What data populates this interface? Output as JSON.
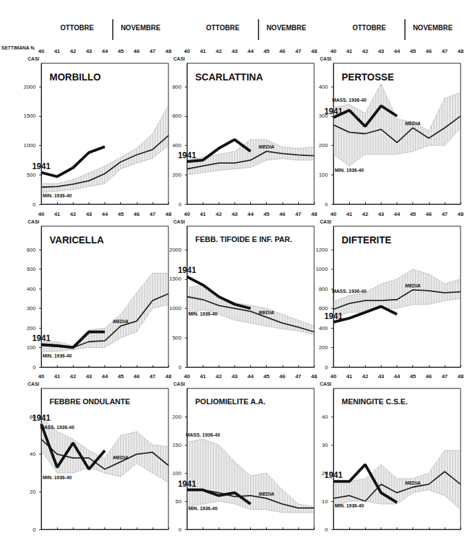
{
  "header": {
    "months": [
      {
        "label": "OTTOBRE",
        "weeks": [
          40,
          44
        ]
      },
      {
        "label": "NOVEMBRE",
        "weeks": [
          45,
          48
        ]
      }
    ],
    "week_label": "SETTIMANA N."
  },
  "chart_data": [
    {
      "type": "line",
      "title": "MORBILLO",
      "ylabel": "CASI",
      "categories": [
        40,
        41,
        42,
        43,
        44,
        45,
        46,
        47,
        48
      ],
      "ylim": [
        0,
        2400
      ],
      "yticks": [
        0,
        500,
        1000,
        1500,
        2000
      ],
      "grid": false,
      "series": [
        {
          "name": "1941",
          "color": "#111111",
          "line_style": "solid",
          "values": [
            540,
            470,
            620,
            880,
            980,
            null,
            null,
            null,
            null
          ]
        },
        {
          "color": "#222222",
          "line_style": "solid",
          "values": [
            290,
            300,
            340,
            400,
            520,
            720,
            840,
            930,
            1170
          ]
        },
        {
          "name": "MIN. 1936-40",
          "type": "band",
          "color": "#8a8a8a",
          "line_style": "dotted",
          "values": [
            200,
            220,
            250,
            300,
            350,
            600,
            700,
            780,
            1000
          ]
        },
        {
          "type": "band",
          "color": "#8a8a8a",
          "line_style": "dotted",
          "values": [
            350,
            350,
            420,
            530,
            650,
            800,
            950,
            1200,
            1680
          ]
        }
      ]
    },
    {
      "type": "line",
      "title": "SCARLATTINA",
      "ylabel": "CASI",
      "categories": [
        40,
        41,
        42,
        43,
        44,
        45,
        46,
        47,
        48
      ],
      "ylim": [
        0,
        960
      ],
      "yticks": [
        0,
        200,
        400,
        600,
        800
      ],
      "grid": false,
      "series": [
        {
          "name": "1941",
          "color": "#111111",
          "line_style": "solid",
          "values": [
            290,
            300,
            380,
            440,
            360,
            null,
            null,
            null,
            null
          ]
        },
        {
          "name": "MEDIA",
          "color": "#222222",
          "line_style": "solid",
          "values": [
            240,
            260,
            280,
            280,
            300,
            360,
            345,
            335,
            330
          ]
        },
        {
          "type": "band",
          "color": "#8a8a8a",
          "line_style": "dotted",
          "values": [
            200,
            215,
            230,
            240,
            250,
            300,
            310,
            300,
            300
          ]
        },
        {
          "type": "band",
          "color": "#8a8a8a",
          "line_style": "dotted",
          "values": [
            300,
            320,
            340,
            360,
            440,
            440,
            390,
            380,
            390
          ]
        }
      ]
    },
    {
      "type": "line",
      "title": "PERTOSSE",
      "ylabel": "CASI",
      "categories": [
        40,
        41,
        42,
        43,
        44,
        45,
        46,
        47,
        48
      ],
      "ylim": [
        0,
        480
      ],
      "yticks": [
        0,
        100,
        200,
        300,
        400
      ],
      "grid": false,
      "series": [
        {
          "name": "1941",
          "color": "#111111",
          "line_style": "solid",
          "values": [
            295,
            320,
            265,
            335,
            300,
            null,
            null,
            null,
            null
          ]
        },
        {
          "name": "MEDIA",
          "color": "#222222",
          "line_style": "solid",
          "values": [
            270,
            245,
            240,
            255,
            210,
            260,
            225,
            260,
            300
          ]
        },
        {
          "name": "MIN. 1936-40",
          "type": "band",
          "color": "#8a8a8a",
          "line_style": "dotted",
          "values": [
            170,
            130,
            170,
            170,
            170,
            180,
            200,
            200,
            260
          ]
        },
        {
          "name": "MASS. 1936-40",
          "type": "band",
          "color": "#8a8a8a",
          "line_style": "dotted",
          "values": [
            330,
            340,
            310,
            410,
            290,
            280,
            250,
            360,
            380
          ]
        }
      ]
    },
    {
      "type": "line",
      "title": "VARICELLA",
      "ylabel": "CASI",
      "categories": [
        40,
        41,
        42,
        43,
        44,
        45,
        46,
        47,
        48
      ],
      "ylim": [
        0,
        720
      ],
      "yticks": [
        0,
        100,
        200,
        300,
        400,
        500,
        600
      ],
      "grid": false,
      "series": [
        {
          "name": "1941",
          "color": "#111111",
          "line_style": "solid",
          "values": [
            115,
            110,
            100,
            180,
            180,
            null,
            null,
            null,
            null
          ]
        },
        {
          "name": "MEDIA",
          "color": "#222222",
          "line_style": "solid",
          "values": [
            110,
            105,
            100,
            130,
            135,
            210,
            235,
            340,
            375
          ]
        },
        {
          "name": "MIN. 1936-40",
          "type": "band",
          "color": "#8a8a8a",
          "line_style": "dotted",
          "values": [
            80,
            80,
            90,
            100,
            100,
            150,
            180,
            300,
            320
          ]
        },
        {
          "type": "band",
          "color": "#8a8a8a",
          "line_style": "dotted",
          "values": [
            130,
            130,
            110,
            190,
            200,
            270,
            380,
            480,
            480
          ]
        }
      ]
    },
    {
      "type": "line",
      "title": "FEBB. TIFOIDE E INF. PAR.",
      "ylabel": "CASI",
      "categories": [
        40,
        41,
        42,
        43,
        44,
        45,
        46,
        47,
        48
      ],
      "ylim": [
        0,
        2400
      ],
      "yticks": [
        0,
        500,
        1000,
        1500,
        2000
      ],
      "grid": false,
      "series": [
        {
          "name": "1941",
          "color": "#111111",
          "line_style": "solid",
          "values": [
            1540,
            1400,
            1200,
            1070,
            1000,
            null,
            null,
            null,
            null
          ]
        },
        {
          "name": "MEDIA",
          "color": "#222222",
          "line_style": "solid",
          "values": [
            1200,
            1150,
            1050,
            1000,
            950,
            850,
            750,
            680,
            600
          ]
        },
        {
          "name": "MIN. 1936-40",
          "type": "band",
          "color": "#8a8a8a",
          "line_style": "dotted",
          "values": [
            900,
            980,
            900,
            800,
            750,
            700,
            650,
            620,
            550
          ]
        },
        {
          "type": "band",
          "color": "#8a8a8a",
          "line_style": "dotted",
          "values": [
            1350,
            1400,
            1200,
            1100,
            1050,
            1000,
            900,
            800,
            700
          ]
        }
      ]
    },
    {
      "type": "line",
      "title": "DIFTERITE",
      "ylabel": "CASI",
      "categories": [
        40,
        41,
        42,
        43,
        44,
        45,
        46,
        47,
        48
      ],
      "ylim": [
        0,
        1440
      ],
      "yticks": [
        0,
        200,
        400,
        600,
        800,
        1000,
        1200
      ],
      "grid": false,
      "series": [
        {
          "name": "1941",
          "color": "#111111",
          "line_style": "solid",
          "values": [
            460,
            500,
            560,
            620,
            540,
            null,
            null,
            null,
            null
          ]
        },
        {
          "name": "MEDIA",
          "color": "#222222",
          "line_style": "solid",
          "values": [
            590,
            650,
            680,
            680,
            690,
            790,
            780,
            760,
            770
          ]
        },
        {
          "type": "band",
          "color": "#8a8a8a",
          "line_style": "dotted",
          "values": [
            500,
            560,
            560,
            600,
            600,
            640,
            640,
            680,
            700
          ]
        },
        {
          "name": "MASS. 1936-40",
          "type": "band",
          "color": "#8a8a8a",
          "line_style": "dotted",
          "values": [
            670,
            730,
            760,
            850,
            900,
            1000,
            950,
            850,
            900
          ]
        }
      ]
    },
    {
      "type": "line",
      "title": "FEBBRE ONDULANTE",
      "ylabel": "CASI",
      "categories": [
        40,
        41,
        42,
        43,
        44,
        45,
        46,
        47,
        48
      ],
      "ylim": [
        0,
        75
      ],
      "yticks": [
        0,
        20,
        40,
        60
      ],
      "grid": false,
      "series": [
        {
          "name": "1941",
          "color": "#111111",
          "line_style": "solid",
          "values": [
            56,
            33,
            46,
            32,
            42,
            null,
            null,
            null,
            null
          ]
        },
        {
          "name": "MEDIA",
          "color": "#222222",
          "line_style": "solid",
          "values": [
            48,
            40,
            38,
            38,
            32,
            36,
            40,
            41,
            34
          ]
        },
        {
          "name": "MIN. 1936-40",
          "type": "band",
          "color": "#8a8a8a",
          "line_style": "dotted",
          "values": [
            42,
            30,
            30,
            33,
            30,
            28,
            35,
            30,
            25
          ]
        },
        {
          "name": "MASS. 1936-40",
          "type": "band",
          "color": "#8a8a8a",
          "line_style": "dotted",
          "values": [
            60,
            52,
            48,
            42,
            38,
            50,
            52,
            45,
            44
          ]
        }
      ]
    },
    {
      "type": "line",
      "title": "POLIOMIELITE A.A.",
      "ylabel": "CASI",
      "categories": [
        40,
        41,
        42,
        43,
        44,
        45,
        46,
        47,
        48
      ],
      "ylim": [
        0,
        250
      ],
      "yticks": [
        0,
        50,
        100,
        150,
        200
      ],
      "grid": false,
      "series": [
        {
          "name": "1941",
          "color": "#111111",
          "line_style": "solid",
          "values": [
            70,
            70,
            60,
            65,
            45,
            null,
            null,
            null,
            null
          ]
        },
        {
          "name": "MEDIA",
          "color": "#222222",
          "line_style": "solid",
          "values": [
            70,
            70,
            65,
            58,
            60,
            55,
            45,
            38,
            38
          ]
        },
        {
          "name": "MIN. 1936-40",
          "type": "band",
          "color": "#8a8a8a",
          "line_style": "dotted",
          "values": [
            40,
            45,
            50,
            45,
            35,
            35,
            30,
            30,
            30
          ]
        },
        {
          "name": "MASS. 1936-40",
          "type": "band",
          "color": "#8a8a8a",
          "line_style": "dotted",
          "values": [
            155,
            160,
            150,
            120,
            95,
            100,
            70,
            45,
            40
          ]
        }
      ]
    },
    {
      "type": "line",
      "title": "MENINGITE C.S.E.",
      "ylabel": "CASI",
      "categories": [
        40,
        41,
        42,
        43,
        44,
        45,
        46,
        47,
        48
      ],
      "ylim": [
        0,
        50
      ],
      "yticks": [
        0,
        10,
        20,
        30,
        40
      ],
      "grid": false,
      "series": [
        {
          "name": "1941",
          "color": "#111111",
          "line_style": "solid",
          "values": [
            17,
            17,
            23,
            13,
            9.5,
            null,
            null,
            null,
            null
          ]
        },
        {
          "name": "MEDIA",
          "color": "#222222",
          "line_style": "solid",
          "values": [
            11,
            12,
            10,
            16,
            13,
            15,
            16,
            20.5,
            16
          ]
        },
        {
          "name": "MIN. 1936-40",
          "type": "band",
          "color": "#8a8a8a",
          "line_style": "dotted",
          "values": [
            8,
            10,
            10,
            9,
            9,
            13,
            14,
            12,
            7
          ]
        },
        {
          "type": "band",
          "color": "#8a8a8a",
          "line_style": "dotted",
          "values": [
            17,
            17,
            18,
            23,
            18,
            18,
            20,
            28,
            28
          ]
        }
      ]
    }
  ]
}
